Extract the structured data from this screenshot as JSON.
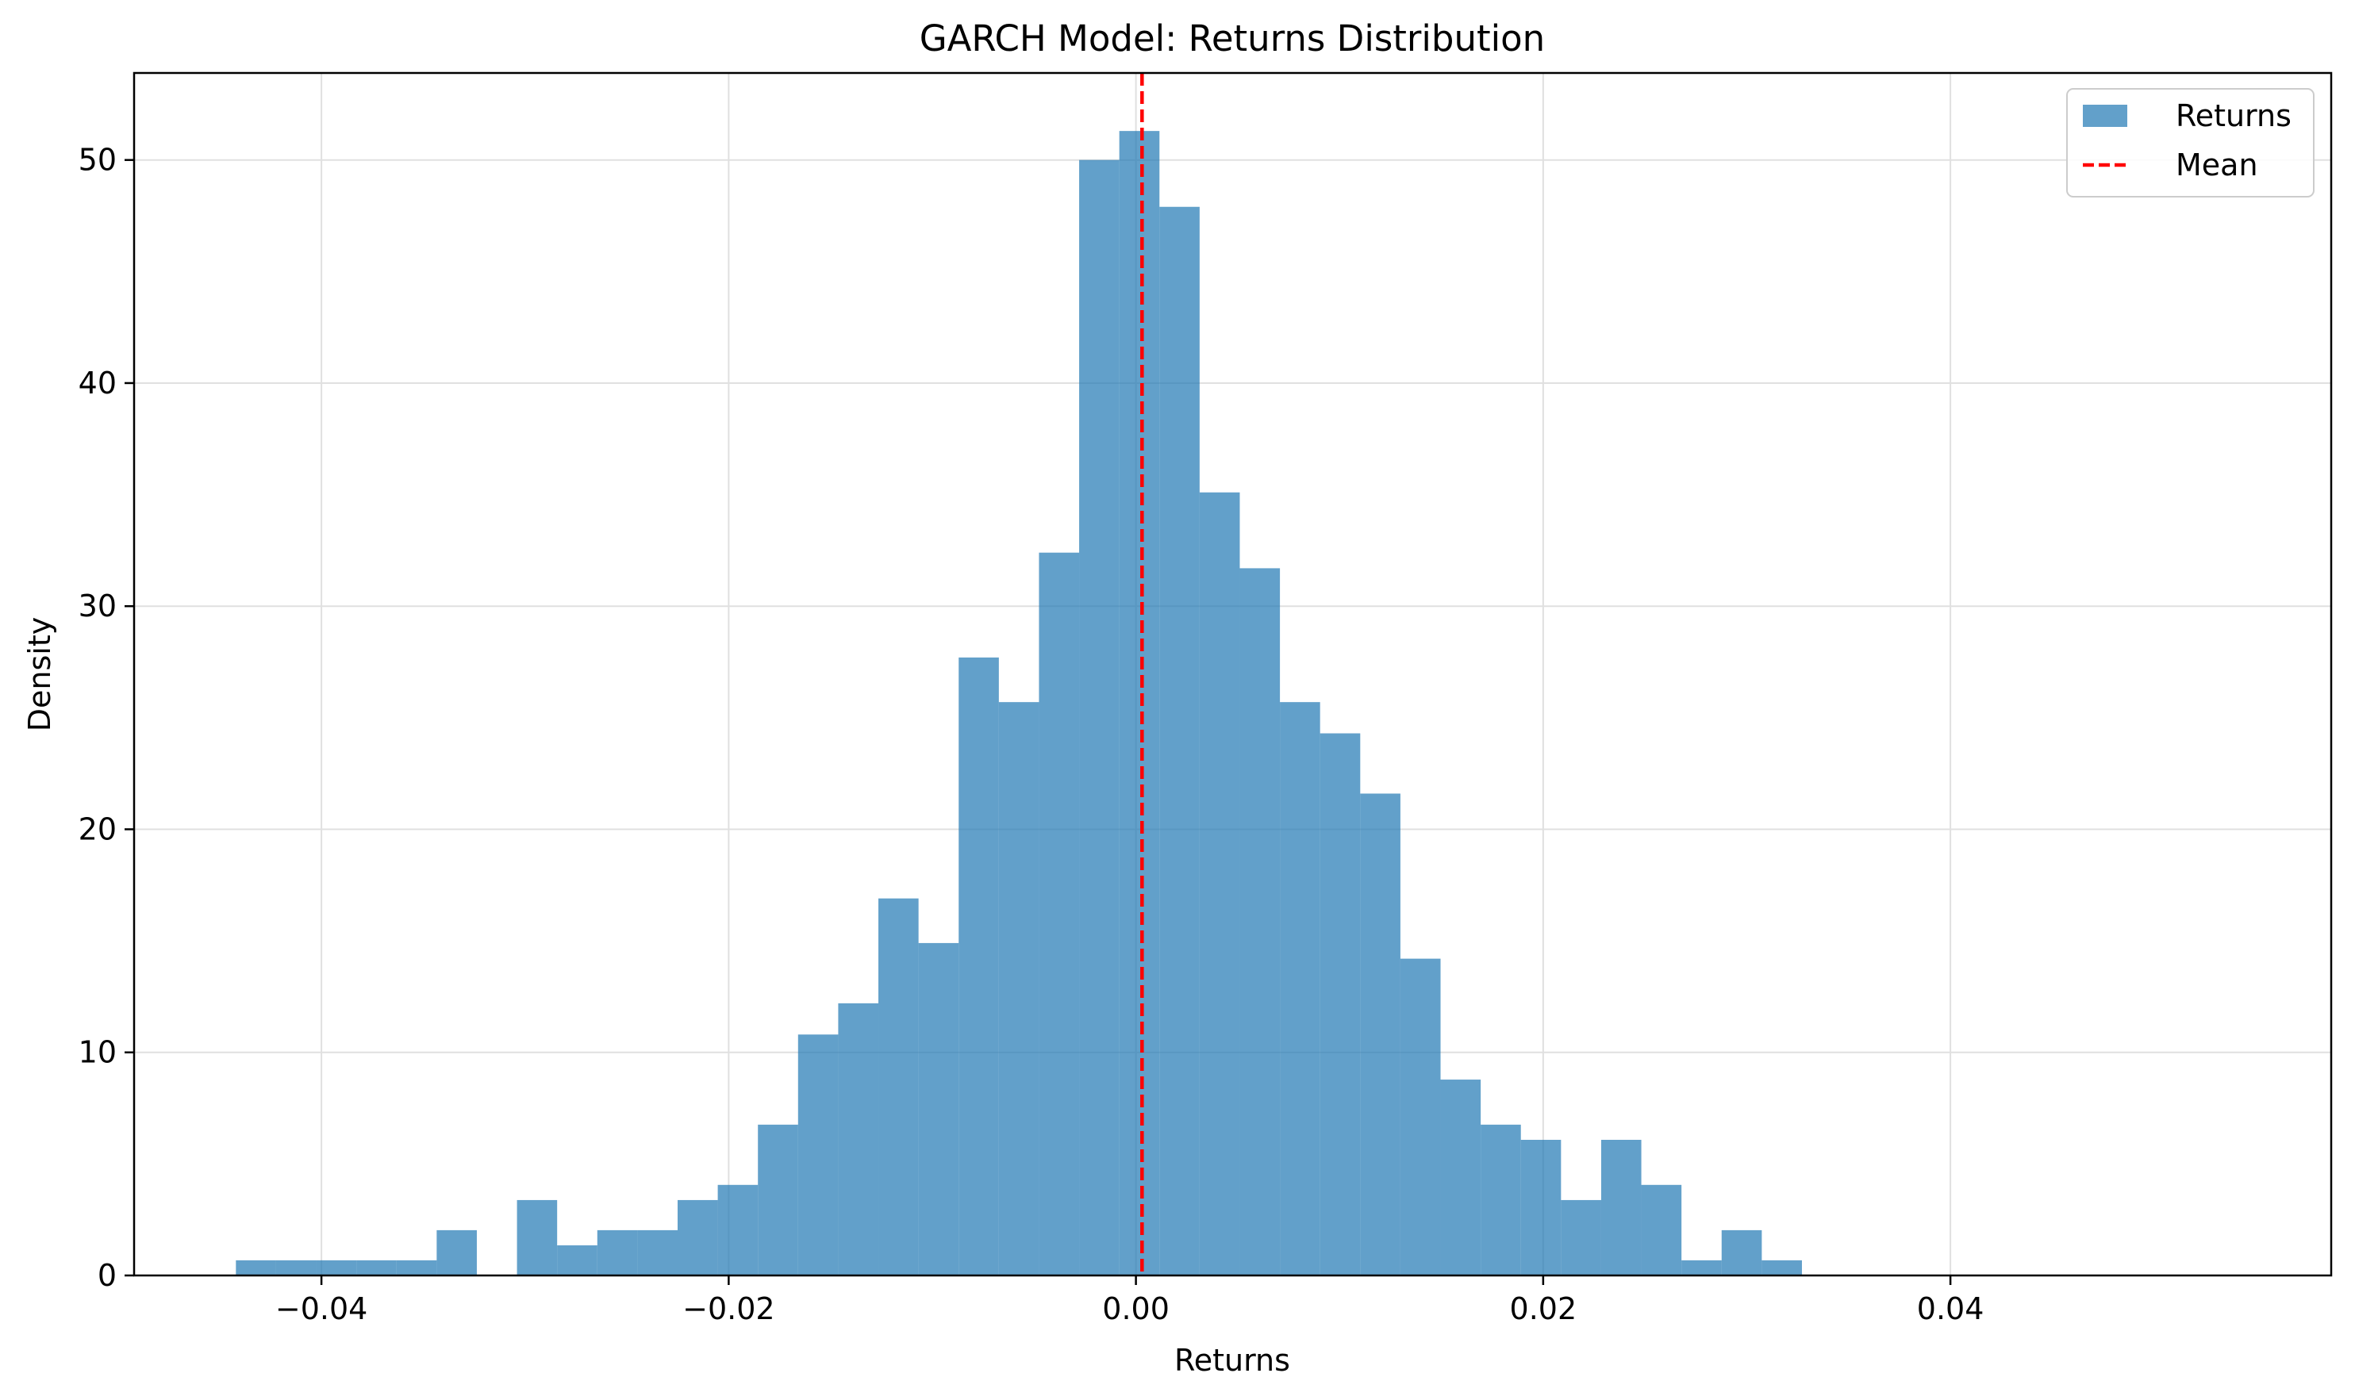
{
  "chart_data": {
    "type": "bar",
    "title": "GARCH Model: Returns Distribution",
    "xlabel": "Returns",
    "ylabel": "Density",
    "xlim": [
      -0.0492,
      0.0587
    ],
    "ylim": [
      0,
      53.9
    ],
    "xticks": [
      -0.04,
      -0.02,
      0.0,
      0.02,
      0.04
    ],
    "xtick_labels": [
      "−0.04",
      "−0.02",
      "0.00",
      "0.02",
      "0.04"
    ],
    "yticks": [
      0,
      10,
      20,
      30,
      40,
      50
    ],
    "ytick_labels": [
      "0",
      "10",
      "20",
      "30",
      "40",
      "50"
    ],
    "grid": true,
    "legend_position": "top-right",
    "bins": {
      "start": -0.0442,
      "width": 0.001972
    },
    "series": [
      {
        "name": "Returns",
        "kind": "histogram",
        "color": "#1f77b4",
        "values": [
          0.68,
          0.68,
          0.68,
          0.68,
          0.68,
          2.03,
          0,
          3.38,
          1.35,
          2.03,
          2.03,
          3.38,
          4.06,
          6.76,
          10.8,
          12.2,
          16.9,
          14.9,
          27.7,
          25.7,
          32.4,
          50.0,
          51.3,
          47.9,
          35.1,
          31.7,
          25.7,
          24.3,
          21.6,
          14.2,
          8.78,
          6.76,
          6.08,
          3.38,
          6.08,
          4.06,
          0.68,
          2.03,
          0.68,
          0,
          0,
          0,
          0,
          0,
          0,
          0,
          0,
          0,
          0,
          0,
          0,
          0,
          0,
          0,
          0.68
        ]
      },
      {
        "name": "Mean",
        "kind": "vline",
        "color": "#ff0000",
        "x": 0.0003
      }
    ]
  }
}
